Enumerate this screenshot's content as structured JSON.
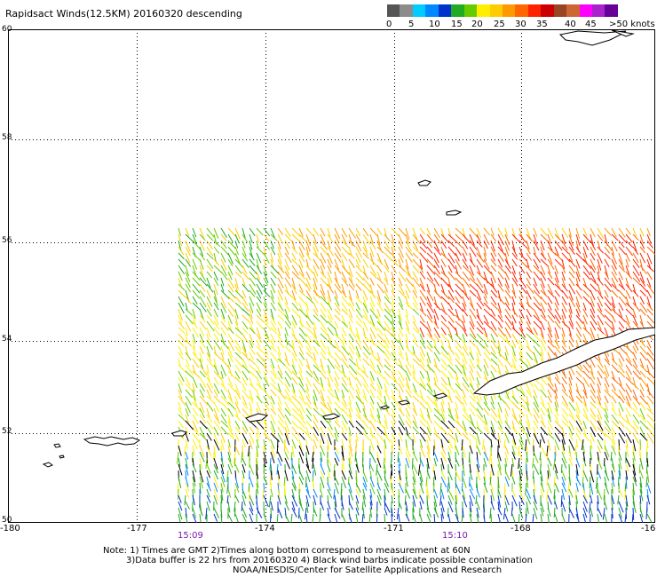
{
  "title": "Rapidsact Winds(12.5KM) 20160320 descending",
  "colorbar": {
    "colors": [
      "#555555",
      "#8c8c8c",
      "#00ccff",
      "#0088ff",
      "#0033cc",
      "#22aa22",
      "#66cc00",
      "#ffee00",
      "#ffcc00",
      "#ff9900",
      "#ff6600",
      "#ff2200",
      "#cc0000",
      "#994422",
      "#cc6633",
      "#ff00ff",
      "#aa22cc",
      "#660099"
    ],
    "ticks": [
      "0",
      "5",
      "10",
      "15",
      "20",
      "25",
      "30",
      "35",
      "40",
      "45",
      ">50 knots"
    ]
  },
  "lat_labels": [
    "60",
    "58",
    "56",
    "54",
    "52",
    "50"
  ],
  "lon_labels": [
    "-180",
    "-177",
    "-174",
    "-171",
    "-168",
    "-16"
  ],
  "time_labels": [
    "15:09",
    "15:10"
  ],
  "notes": {
    "line1": "Note: 1) Times are GMT 2)Times along bottom correspond to measurement at 60N",
    "line2": "3)Data buffer is 22 hrs from 20160320 4) Black wind barbs indicate possible contamination",
    "line3": "NOAA/NESDIS/Center for Satellite Applications and Research"
  }
}
